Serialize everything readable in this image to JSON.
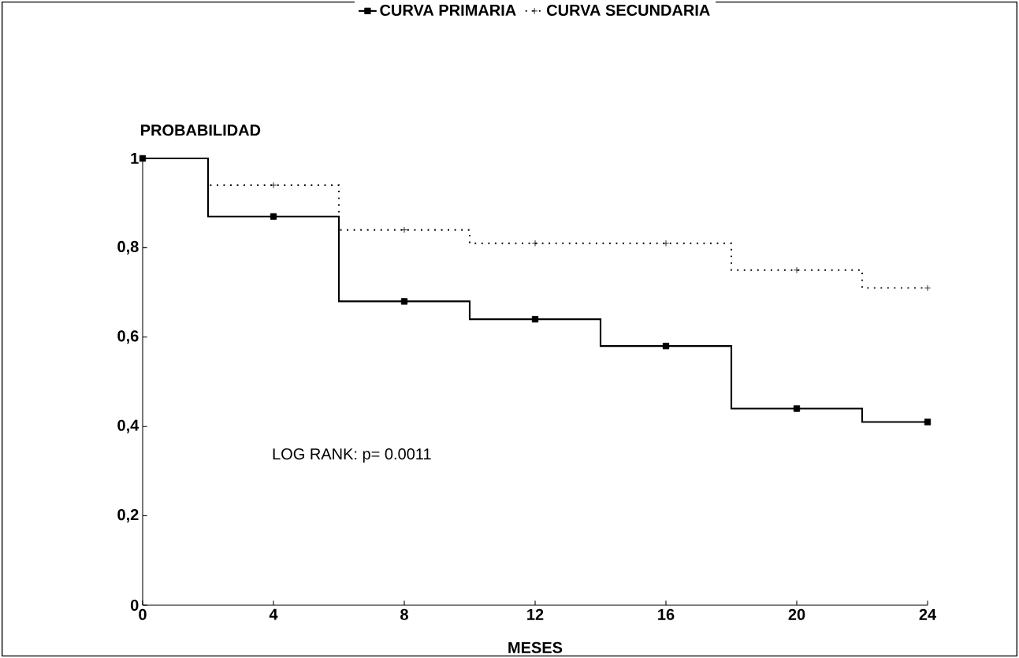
{
  "chart_data": {
    "type": "step",
    "xlabel": "MESES",
    "ylabel": "PROBABILIDAD",
    "legend": "top",
    "x": [
      0,
      2,
      4,
      6,
      8,
      10,
      12,
      14,
      16,
      18,
      20,
      22,
      24
    ],
    "series": [
      {
        "name": "CURVA PRIMARIA",
        "color": "#000000",
        "marker": "square",
        "line_style": "solid",
        "values": [
          1,
          0.87,
          0.87,
          0.68,
          0.68,
          0.64,
          0.64,
          0.58,
          0.58,
          0.44,
          0.44,
          0.41,
          0.41
        ]
      },
      {
        "name": "CURVA SECUNDARIA",
        "color": "#000000",
        "marker": "cross",
        "line_style": "dotted",
        "values": [
          1,
          0.94,
          0.94,
          0.84,
          0.84,
          0.81,
          0.81,
          0.81,
          0.81,
          0.75,
          0.75,
          0.71,
          0.71
        ]
      }
    ],
    "xlim": [
      0,
      24
    ],
    "xticks": [
      0,
      4,
      8,
      12,
      16,
      20,
      24
    ],
    "ylim": [
      0,
      1
    ],
    "yticks": [
      {
        "value": 0,
        "label": "0"
      },
      {
        "value": 0.2,
        "label": "0,2"
      },
      {
        "value": 0.4,
        "label": "0,4"
      },
      {
        "value": 0.6,
        "label": "0,6"
      },
      {
        "value": 0.8,
        "label": "0,8"
      },
      {
        "value": 1,
        "label": "1"
      }
    ],
    "grid": false,
    "annotations": [
      "LOG RANK: p= 0.0011"
    ]
  }
}
